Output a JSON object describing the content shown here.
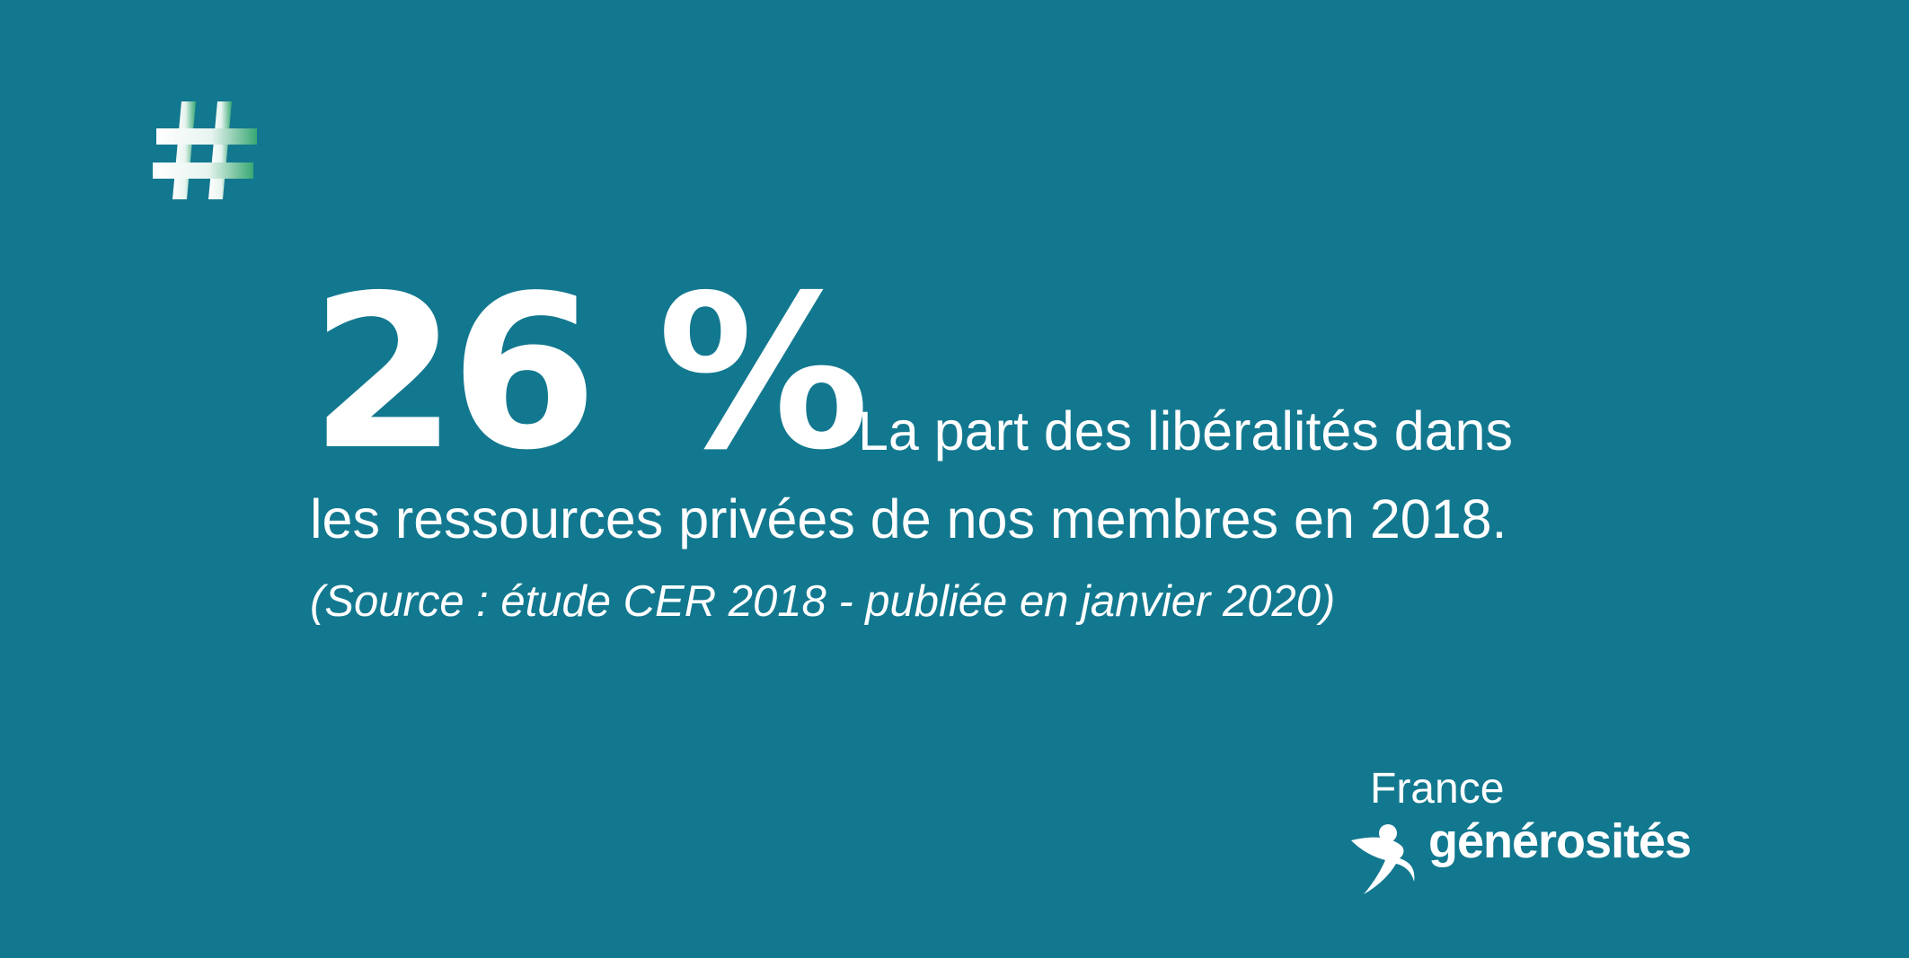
{
  "theme": {
    "background": "#12788f",
    "text": "#ffffff",
    "accent_gradient": [
      "#ffffff",
      "#38a873"
    ]
  },
  "icons": {
    "hash": "hash-icon"
  },
  "stat": {
    "value": "26 %",
    "line1": "La part des libéralités dans",
    "line2": "les ressources privées de nos membres en 2018.",
    "source": "(Source : étude CER 2018 - publiée en janvier 2020)"
  },
  "brand": {
    "top": "France",
    "bottom": "générosités",
    "logo_icon": "figure-swoosh-icon"
  }
}
